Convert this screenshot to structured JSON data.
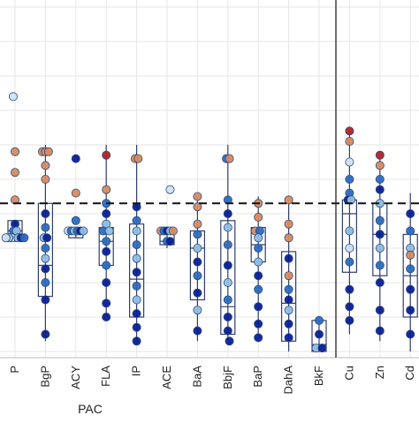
{
  "chart_data": {
    "type": "box-scatter",
    "title": "",
    "xlabel": "",
    "ylabel": "",
    "group_label": "PAC",
    "grid": true,
    "ylim": [
      0,
      100
    ],
    "threshold": 43,
    "categories": [
      "P",
      "BgP",
      "ACY",
      "FLA",
      "IP",
      "ACE",
      "BaA",
      "BbjF",
      "BaP",
      "DahA",
      "BkF",
      "Cu",
      "Zn",
      "Cd"
    ],
    "boxes": [
      {
        "name": "P",
        "q1": 32,
        "median": 35,
        "q3": 38,
        "whisker_low": 32,
        "whisker_high": 38
      },
      {
        "name": "BgP",
        "q1": 16,
        "median": 25,
        "q3": 43,
        "whisker_low": 3,
        "whisker_high": 60
      },
      {
        "name": "ACY",
        "q1": 33,
        "median": 35,
        "q3": 36,
        "whisker_low": 33,
        "whisker_high": 36
      },
      {
        "name": "FLA",
        "q1": 25,
        "median": 32,
        "q3": 36,
        "whisker_low": 10,
        "whisker_high": 60
      },
      {
        "name": "IP",
        "q1": 10,
        "median": 21,
        "q3": 37,
        "whisker_low": 3,
        "whisker_high": 60
      },
      {
        "name": "ACE",
        "q1": 31,
        "median": 32,
        "q3": 34,
        "whisker_low": 30,
        "whisker_high": 35
      },
      {
        "name": "BaA",
        "q1": 15,
        "median": 30,
        "q3": 35,
        "whisker_low": 3,
        "whisker_high": 45
      },
      {
        "name": "BbjF",
        "q1": 5,
        "median": 13,
        "q3": 38,
        "whisker_low": 3,
        "whisker_high": 60
      },
      {
        "name": "BaP",
        "q1": 26,
        "median": 31,
        "q3": 36,
        "whisker_low": 5,
        "whisker_high": 45
      },
      {
        "name": "DahA",
        "q1": 3,
        "median": 14,
        "q3": 29,
        "whisker_low": 0,
        "whisker_high": 44
      },
      {
        "name": "BkF",
        "q1": 0,
        "median": 2,
        "q3": 9,
        "whisker_low": 0,
        "whisker_high": 9
      },
      {
        "name": "Cu",
        "q1": 23,
        "median": 40,
        "q3": 44,
        "whisker_low": 5,
        "whisker_high": 64
      },
      {
        "name": "Zn",
        "q1": 22,
        "median": 34,
        "q3": 43,
        "whisker_low": 3,
        "whisker_high": 56
      },
      {
        "name": "Cd",
        "q1": 10,
        "median": 22,
        "q3": 34,
        "whisker_low": 0,
        "whisker_high": 46
      }
    ],
    "points": [
      {
        "c": 0,
        "dx": -0.06,
        "y": 74,
        "t": 3
      },
      {
        "c": 0,
        "dx": 0,
        "y": 58,
        "t": 4
      },
      {
        "c": 0,
        "dx": 0,
        "y": 52,
        "t": 4
      },
      {
        "c": 0,
        "dx": 0,
        "y": 44,
        "t": 4
      },
      {
        "c": 0,
        "dx": 0,
        "y": 37,
        "t": 0
      },
      {
        "c": 0,
        "dx": -0.05,
        "y": 35,
        "t": 1
      },
      {
        "c": 0,
        "dx": 0.05,
        "y": 35,
        "t": 2
      },
      {
        "c": 0,
        "dx": -0.1,
        "y": 33,
        "t": 3
      },
      {
        "c": 0,
        "dx": -0.2,
        "y": 33,
        "t": 2
      },
      {
        "c": 0,
        "dx": -0.3,
        "y": 33,
        "t": 3
      },
      {
        "c": 0,
        "dx": 0.1,
        "y": 33,
        "t": 2
      },
      {
        "c": 0,
        "dx": 0.2,
        "y": 33,
        "t": 0
      },
      {
        "c": 0,
        "dx": 0.3,
        "y": 33,
        "t": 1
      },
      {
        "c": 1,
        "dx": -0.1,
        "y": 58,
        "t": 4
      },
      {
        "c": 1,
        "dx": 0,
        "y": 58,
        "t": 4
      },
      {
        "c": 1,
        "dx": 0.1,
        "y": 58,
        "t": 4
      },
      {
        "c": 1,
        "dx": 0,
        "y": 54,
        "t": 4
      },
      {
        "c": 1,
        "dx": 0,
        "y": 50,
        "t": 4
      },
      {
        "c": 1,
        "dx": 0,
        "y": 40,
        "t": 0
      },
      {
        "c": 1,
        "dx": 0,
        "y": 36,
        "t": 1
      },
      {
        "c": 1,
        "dx": -0.05,
        "y": 33,
        "t": 2
      },
      {
        "c": 1,
        "dx": 0.05,
        "y": 33,
        "t": 0
      },
      {
        "c": 1,
        "dx": 0,
        "y": 30,
        "t": 1
      },
      {
        "c": 1,
        "dx": 0,
        "y": 27,
        "t": 2
      },
      {
        "c": 1,
        "dx": 0,
        "y": 24,
        "t": 0
      },
      {
        "c": 1,
        "dx": 0,
        "y": 20,
        "t": 1
      },
      {
        "c": 1,
        "dx": 0,
        "y": 15,
        "t": 0
      },
      {
        "c": 1,
        "dx": 0,
        "y": 5,
        "t": 0
      },
      {
        "c": 2,
        "dx": 0,
        "y": 56,
        "t": 0
      },
      {
        "c": 2,
        "dx": 0,
        "y": 46,
        "t": 4
      },
      {
        "c": 2,
        "dx": -0.25,
        "y": 35,
        "t": 3
      },
      {
        "c": 2,
        "dx": -0.15,
        "y": 35,
        "t": 1
      },
      {
        "c": 2,
        "dx": -0.05,
        "y": 35,
        "t": 2
      },
      {
        "c": 2,
        "dx": 0.05,
        "y": 35,
        "t": 1
      },
      {
        "c": 2,
        "dx": 0.15,
        "y": 35,
        "t": 0
      },
      {
        "c": 2,
        "dx": 0.25,
        "y": 35,
        "t": 2
      },
      {
        "c": 2,
        "dx": 0,
        "y": 38,
        "t": 1
      },
      {
        "c": 3,
        "dx": 0,
        "y": 57,
        "t": 5
      },
      {
        "c": 3,
        "dx": 0,
        "y": 47,
        "t": 4
      },
      {
        "c": 3,
        "dx": 0,
        "y": 43,
        "t": 1
      },
      {
        "c": 3,
        "dx": 0,
        "y": 40,
        "t": 0
      },
      {
        "c": 3,
        "dx": 0,
        "y": 37,
        "t": 2
      },
      {
        "c": 3,
        "dx": -0.1,
        "y": 35,
        "t": 1
      },
      {
        "c": 3,
        "dx": 0.1,
        "y": 35,
        "t": 2
      },
      {
        "c": 3,
        "dx": 0,
        "y": 32,
        "t": 1
      },
      {
        "c": 3,
        "dx": 0,
        "y": 29,
        "t": 0
      },
      {
        "c": 3,
        "dx": 0,
        "y": 25,
        "t": 1
      },
      {
        "c": 3,
        "dx": 0,
        "y": 20,
        "t": 0
      },
      {
        "c": 3,
        "dx": 0,
        "y": 14,
        "t": 0
      },
      {
        "c": 3,
        "dx": 0,
        "y": 10,
        "t": 0
      },
      {
        "c": 4,
        "dx": -0.05,
        "y": 56,
        "t": 4
      },
      {
        "c": 4,
        "dx": 0.05,
        "y": 56,
        "t": 4
      },
      {
        "c": 4,
        "dx": 0,
        "y": 42,
        "t": 0
      },
      {
        "c": 4,
        "dx": 0,
        "y": 38,
        "t": 1
      },
      {
        "c": 4,
        "dx": 0,
        "y": 35,
        "t": 2
      },
      {
        "c": 4,
        "dx": 0,
        "y": 31,
        "t": 1
      },
      {
        "c": 4,
        "dx": 0,
        "y": 27,
        "t": 2
      },
      {
        "c": 4,
        "dx": 0,
        "y": 23,
        "t": 0
      },
      {
        "c": 4,
        "dx": 0,
        "y": 19,
        "t": 1
      },
      {
        "c": 4,
        "dx": 0,
        "y": 15,
        "t": 2
      },
      {
        "c": 4,
        "dx": 0,
        "y": 11,
        "t": 0
      },
      {
        "c": 4,
        "dx": 0,
        "y": 7,
        "t": 0
      },
      {
        "c": 4,
        "dx": 0,
        "y": 3,
        "t": 0
      },
      {
        "c": 5,
        "dx": 0.1,
        "y": 47,
        "t": 3
      },
      {
        "c": 5,
        "dx": -0.2,
        "y": 35,
        "t": 4
      },
      {
        "c": 5,
        "dx": -0.1,
        "y": 35,
        "t": 1
      },
      {
        "c": 5,
        "dx": 0,
        "y": 35,
        "t": 0
      },
      {
        "c": 5,
        "dx": 0.1,
        "y": 35,
        "t": 2
      },
      {
        "c": 5,
        "dx": 0.2,
        "y": 35,
        "t": 4
      },
      {
        "c": 5,
        "dx": 0,
        "y": 32,
        "t": 1
      },
      {
        "c": 5,
        "dx": 0.1,
        "y": 32,
        "t": 0
      },
      {
        "c": 6,
        "dx": 0,
        "y": 45,
        "t": 4
      },
      {
        "c": 6,
        "dx": 0,
        "y": 42,
        "t": 4
      },
      {
        "c": 6,
        "dx": 0,
        "y": 37,
        "t": 4
      },
      {
        "c": 6,
        "dx": 0,
        "y": 34,
        "t": 1
      },
      {
        "c": 6,
        "dx": 0,
        "y": 30,
        "t": 2
      },
      {
        "c": 6,
        "dx": 0,
        "y": 26,
        "t": 0
      },
      {
        "c": 6,
        "dx": 0,
        "y": 22,
        "t": 1
      },
      {
        "c": 6,
        "dx": 0,
        "y": 17,
        "t": 0
      },
      {
        "c": 6,
        "dx": 0,
        "y": 12,
        "t": 2
      },
      {
        "c": 6,
        "dx": 0,
        "y": 6,
        "t": 0
      },
      {
        "c": 7,
        "dx": -0.05,
        "y": 56,
        "t": 1
      },
      {
        "c": 7,
        "dx": 0.05,
        "y": 56,
        "t": 4
      },
      {
        "c": 7,
        "dx": 0,
        "y": 44,
        "t": 1
      },
      {
        "c": 7,
        "dx": 0,
        "y": 40,
        "t": 0
      },
      {
        "c": 7,
        "dx": 0,
        "y": 36,
        "t": 2
      },
      {
        "c": 7,
        "dx": 0,
        "y": 31,
        "t": 1
      },
      {
        "c": 7,
        "dx": 0,
        "y": 25,
        "t": 0
      },
      {
        "c": 7,
        "dx": 0,
        "y": 20,
        "t": 2
      },
      {
        "c": 7,
        "dx": 0,
        "y": 15,
        "t": 1
      },
      {
        "c": 7,
        "dx": 0,
        "y": 10,
        "t": 0
      },
      {
        "c": 7,
        "dx": 0,
        "y": 6,
        "t": 0
      },
      {
        "c": 7,
        "dx": 0.05,
        "y": 3,
        "t": 0
      },
      {
        "c": 8,
        "dx": 0,
        "y": 43,
        "t": 4
      },
      {
        "c": 8,
        "dx": 0,
        "y": 39,
        "t": 4
      },
      {
        "c": 8,
        "dx": -0.1,
        "y": 35,
        "t": 4
      },
      {
        "c": 8,
        "dx": 0.05,
        "y": 35,
        "t": 1
      },
      {
        "c": 8,
        "dx": 0,
        "y": 33,
        "t": 2
      },
      {
        "c": 8,
        "dx": 0,
        "y": 30,
        "t": 1
      },
      {
        "c": 8,
        "dx": 0,
        "y": 26,
        "t": 2
      },
      {
        "c": 8,
        "dx": 0,
        "y": 22,
        "t": 0
      },
      {
        "c": 8,
        "dx": 0,
        "y": 18,
        "t": 1
      },
      {
        "c": 8,
        "dx": 0,
        "y": 13,
        "t": 0
      },
      {
        "c": 8,
        "dx": 0,
        "y": 8,
        "t": 0
      },
      {
        "c": 8,
        "dx": 0,
        "y": 4,
        "t": 0
      },
      {
        "c": 9,
        "dx": 0,
        "y": 44,
        "t": 4
      },
      {
        "c": 9,
        "dx": 0,
        "y": 37,
        "t": 4
      },
      {
        "c": 9,
        "dx": 0,
        "y": 33,
        "t": 4
      },
      {
        "c": 9,
        "dx": 0,
        "y": 27,
        "t": 0
      },
      {
        "c": 9,
        "dx": 0,
        "y": 22,
        "t": 4
      },
      {
        "c": 9,
        "dx": 0,
        "y": 18,
        "t": 1
      },
      {
        "c": 9,
        "dx": 0,
        "y": 15,
        "t": 0
      },
      {
        "c": 9,
        "dx": 0,
        "y": 12,
        "t": 2
      },
      {
        "c": 9,
        "dx": 0,
        "y": 8,
        "t": 0
      },
      {
        "c": 9,
        "dx": 0,
        "y": 4,
        "t": 0
      },
      {
        "c": 10,
        "dx": 0,
        "y": 9,
        "t": 1
      },
      {
        "c": 10,
        "dx": 0,
        "y": 5,
        "t": 0
      },
      {
        "c": 10,
        "dx": -0.1,
        "y": 1,
        "t": 2
      },
      {
        "c": 10,
        "dx": 0.1,
        "y": 1,
        "t": 0
      },
      {
        "c": 11,
        "dx": 0,
        "y": 64,
        "t": 5
      },
      {
        "c": 11,
        "dx": 0,
        "y": 61,
        "t": 4
      },
      {
        "c": 11,
        "dx": 0,
        "y": 55,
        "t": 3
      },
      {
        "c": 11,
        "dx": 0,
        "y": 50,
        "t": 1
      },
      {
        "c": 11,
        "dx": 0,
        "y": 46,
        "t": 1
      },
      {
        "c": 11,
        "dx": -0.05,
        "y": 44,
        "t": 0
      },
      {
        "c": 11,
        "dx": 0.05,
        "y": 44,
        "t": 2
      },
      {
        "c": 11,
        "dx": 0,
        "y": 35,
        "t": 2
      },
      {
        "c": 11,
        "dx": 0,
        "y": 30,
        "t": 3
      },
      {
        "c": 11,
        "dx": 0,
        "y": 26,
        "t": 1
      },
      {
        "c": 11,
        "dx": 0,
        "y": 18,
        "t": 0
      },
      {
        "c": 11,
        "dx": 0,
        "y": 13,
        "t": 0
      },
      {
        "c": 11,
        "dx": 0,
        "y": 9,
        "t": 0
      },
      {
        "c": 12,
        "dx": 0,
        "y": 57,
        "t": 5
      },
      {
        "c": 12,
        "dx": 0,
        "y": 54,
        "t": 4
      },
      {
        "c": 12,
        "dx": 0,
        "y": 50,
        "t": 1
      },
      {
        "c": 12,
        "dx": 0,
        "y": 47,
        "t": 0
      },
      {
        "c": 12,
        "dx": 0,
        "y": 43,
        "t": 2
      },
      {
        "c": 12,
        "dx": 0,
        "y": 38,
        "t": 1
      },
      {
        "c": 12,
        "dx": 0,
        "y": 34,
        "t": 0
      },
      {
        "c": 12,
        "dx": 0,
        "y": 30,
        "t": 2
      },
      {
        "c": 12,
        "dx": 0,
        "y": 25,
        "t": 1
      },
      {
        "c": 12,
        "dx": 0,
        "y": 20,
        "t": 0
      },
      {
        "c": 12,
        "dx": 0,
        "y": 12,
        "t": 0
      },
      {
        "c": 12,
        "dx": 0,
        "y": 6,
        "t": 0
      },
      {
        "c": 13,
        "dx": 0,
        "y": 40,
        "t": 0
      },
      {
        "c": 13,
        "dx": 0,
        "y": 35,
        "t": 1
      },
      {
        "c": 13,
        "dx": 0,
        "y": 30,
        "t": 2
      },
      {
        "c": 13,
        "dx": 0,
        "y": 28,
        "t": 4
      },
      {
        "c": 13,
        "dx": 0,
        "y": 24,
        "t": 1
      },
      {
        "c": 13,
        "dx": 0,
        "y": 18,
        "t": 0
      },
      {
        "c": 13,
        "dx": 0,
        "y": 12,
        "t": 0
      },
      {
        "c": 13,
        "dx": 0,
        "y": 5,
        "t": 0
      }
    ],
    "colors": {
      "palette": [
        "#0a1e96",
        "#2c6cc0",
        "#8fbde3",
        "#cfe2f3",
        "#d98a5c",
        "#b22222"
      ],
      "outline": "#2b4a7a",
      "box": "#2f3f6f",
      "grid": "#e6e6e6",
      "threshold": "#111111",
      "separator": "#333333"
    }
  }
}
